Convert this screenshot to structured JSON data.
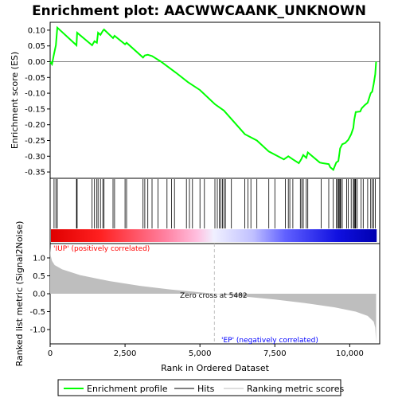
{
  "chart_data": {
    "type": "line",
    "title": "Enrichment plot: AACWWCAANK_UNKNOWN",
    "xlabel": "Rank in Ordered Dataset",
    "ylabel_top": "Enrichment score (ES)",
    "ylabel_bottom": "Ranked list metric (Signal2Noise)",
    "xlim": [
      0,
      11000
    ],
    "ylim_top": [
      -0.37,
      0.125
    ],
    "ylim_bottom": [
      -1.4,
      1.4
    ],
    "x_ticks": [
      0,
      2500,
      5000,
      7500,
      10000
    ],
    "x_tick_labels": [
      "0",
      "2,500",
      "5,000",
      "7,500",
      "10,000"
    ],
    "y_ticks_top": [
      0.1,
      0.05,
      0.0,
      -0.05,
      -0.1,
      -0.15,
      -0.2,
      -0.25,
      -0.3,
      -0.35
    ],
    "y_tick_labels_top": [
      "0.10",
      "0.05",
      "0.00",
      "-0.05",
      "-0.10",
      "-0.15",
      "-0.20",
      "-0.25",
      "-0.30",
      "-0.35"
    ],
    "y_ticks_bottom": [
      1.0,
      0.5,
      0.0,
      -0.5,
      -1.0
    ],
    "y_tick_labels_bottom": [
      "1.0",
      "0.5",
      "0.0",
      "-0.5",
      "-1.0"
    ],
    "n_genes": 10900,
    "zero_cross": 5482,
    "annotations": {
      "positive": "'IUP' (positively correlated)",
      "negative": "'EP' (negatively correlated)",
      "zero_cross": "Zero cross at 5482"
    },
    "enrichment_profile": [
      [
        0,
        0.0
      ],
      [
        60,
        -0.008
      ],
      [
        130,
        0.025
      ],
      [
        190,
        0.052
      ],
      [
        240,
        0.108
      ],
      [
        880,
        0.052
      ],
      [
        900,
        0.092
      ],
      [
        1400,
        0.052
      ],
      [
        1480,
        0.065
      ],
      [
        1560,
        0.06
      ],
      [
        1600,
        0.092
      ],
      [
        1680,
        0.085
      ],
      [
        1760,
        0.098
      ],
      [
        1800,
        0.102
      ],
      [
        2100,
        0.075
      ],
      [
        2150,
        0.082
      ],
      [
        2500,
        0.055
      ],
      [
        2550,
        0.06
      ],
      [
        3100,
        0.013
      ],
      [
        3160,
        0.02
      ],
      [
        3260,
        0.022
      ],
      [
        3400,
        0.018
      ],
      [
        3500,
        0.012
      ],
      [
        3700,
        0.0
      ],
      [
        4200,
        -0.035
      ],
      [
        4600,
        -0.065
      ],
      [
        5000,
        -0.09
      ],
      [
        5500,
        -0.135
      ],
      [
        5800,
        -0.155
      ],
      [
        6500,
        -0.23
      ],
      [
        6900,
        -0.25
      ],
      [
        7300,
        -0.285
      ],
      [
        7800,
        -0.31
      ],
      [
        7950,
        -0.3
      ],
      [
        8100,
        -0.31
      ],
      [
        8300,
        -0.322
      ],
      [
        8380,
        -0.31
      ],
      [
        8450,
        -0.296
      ],
      [
        8550,
        -0.305
      ],
      [
        8600,
        -0.288
      ],
      [
        9000,
        -0.32
      ],
      [
        9100,
        -0.322
      ],
      [
        9300,
        -0.325
      ],
      [
        9350,
        -0.335
      ],
      [
        9450,
        -0.343
      ],
      [
        9550,
        -0.32
      ],
      [
        9620,
        -0.315
      ],
      [
        9680,
        -0.275
      ],
      [
        9750,
        -0.262
      ],
      [
        9850,
        -0.258
      ],
      [
        9950,
        -0.248
      ],
      [
        10050,
        -0.23
      ],
      [
        10120,
        -0.21
      ],
      [
        10150,
        -0.185
      ],
      [
        10200,
        -0.16
      ],
      [
        10350,
        -0.158
      ],
      [
        10400,
        -0.148
      ],
      [
        10500,
        -0.138
      ],
      [
        10600,
        -0.13
      ],
      [
        10700,
        -0.1
      ],
      [
        10750,
        -0.095
      ],
      [
        10800,
        -0.07
      ],
      [
        10850,
        -0.04
      ],
      [
        10880,
        0.0
      ]
    ],
    "hits": [
      130,
      190,
      240,
      880,
      900,
      1400,
      1480,
      1560,
      1600,
      1680,
      1760,
      1800,
      2100,
      2150,
      2500,
      2550,
      3100,
      3160,
      3260,
      3400,
      3600,
      3900,
      4050,
      4150,
      4550,
      4650,
      4750,
      5000,
      5150,
      5500,
      5580,
      5650,
      5700,
      5750,
      5800,
      5850,
      6050,
      6500,
      6600,
      6700,
      6900,
      7300,
      7500,
      7850,
      7950,
      8000,
      8100,
      8350,
      8400,
      8450,
      8550,
      8600,
      9050,
      9300,
      9450,
      9550,
      9600,
      9620,
      9650,
      9680,
      9700,
      9750,
      9900,
      9950,
      10050,
      10120,
      10150,
      10180,
      10200,
      10250,
      10380,
      10450,
      10600,
      10700,
      10750,
      10800,
      10850
    ],
    "metric_curve": [
      [
        0,
        1.3
      ],
      [
        20,
        1.05
      ],
      [
        60,
        0.92
      ],
      [
        150,
        0.8
      ],
      [
        400,
        0.68
      ],
      [
        1000,
        0.52
      ],
      [
        2000,
        0.35
      ],
      [
        3000,
        0.22
      ],
      [
        4000,
        0.12
      ],
      [
        5000,
        0.04
      ],
      [
        5482,
        0.0
      ],
      [
        6500,
        -0.08
      ],
      [
        7500,
        -0.16
      ],
      [
        8500,
        -0.26
      ],
      [
        9500,
        -0.38
      ],
      [
        10200,
        -0.5
      ],
      [
        10600,
        -0.62
      ],
      [
        10800,
        -0.78
      ],
      [
        10850,
        -0.95
      ],
      [
        10880,
        -1.35
      ]
    ],
    "colors": {
      "profile": "#00ff00",
      "hits": "#000000",
      "metric_fill": "#bebebe",
      "positive_text": "#ff0000",
      "negative_text": "#0000ff",
      "zero_line": "#bebebe"
    },
    "legend": {
      "position": "bottom",
      "items": [
        {
          "label": "Enrichment profile",
          "color": "#00ff00"
        },
        {
          "label": "Hits",
          "color": "#000000"
        },
        {
          "label": "Ranking metric scores",
          "color": "#bebebe"
        }
      ]
    }
  }
}
